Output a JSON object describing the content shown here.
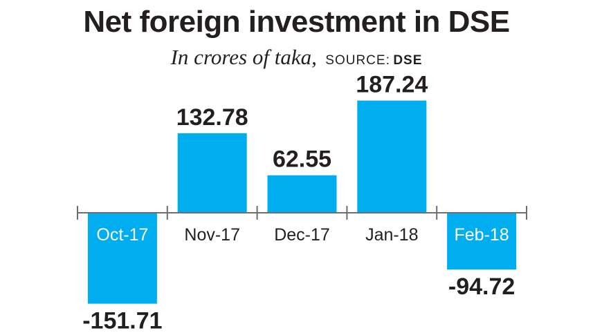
{
  "header": {
    "title": "Net foreign investment in DSE",
    "unit": "In crores of taka,",
    "source_label": "SOURCE:",
    "source_name": "DSE"
  },
  "colors": {
    "bar": "#00aeef",
    "axis": "#6d6e71",
    "text": "#231f20",
    "category_on_bar": "#ffffff"
  },
  "chart_data": {
    "type": "bar",
    "title": "Net foreign investment in DSE",
    "subtitle": "In crores of taka, SOURCE: DSE",
    "categories": [
      "Oct-17",
      "Nov-17",
      "Dec-17",
      "Jan-18",
      "Feb-18"
    ],
    "values": [
      -151.71,
      132.78,
      62.55,
      187.24,
      -94.72
    ],
    "labels": [
      "-151.71",
      "132.78",
      "62.55",
      "187.24",
      "-94.72"
    ],
    "xlabel": "",
    "ylabel": "",
    "ylim": [
      -200,
      200
    ],
    "grid": false,
    "legend": false
  }
}
